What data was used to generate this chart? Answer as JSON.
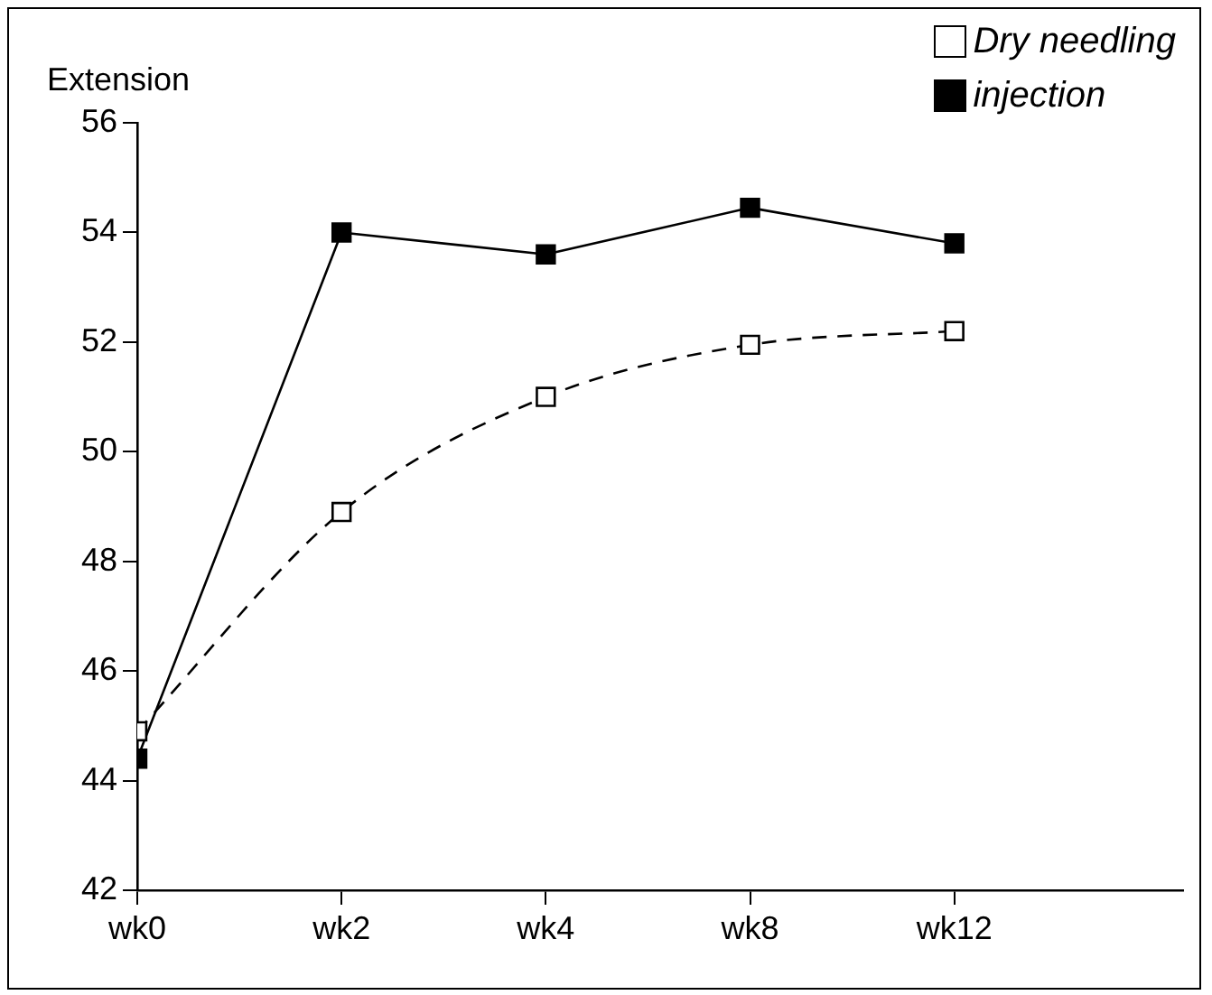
{
  "chart_data": {
    "type": "line",
    "ylabel": "Extension",
    "categories": [
      "wk0",
      "wk2",
      "wk4",
      "wk8",
      "wk12"
    ],
    "ylim": [
      42,
      56
    ],
    "yticks": [
      42,
      44,
      46,
      48,
      50,
      52,
      54,
      56
    ],
    "grid": false,
    "legend": "top right",
    "marker": "square",
    "series": [
      {
        "name": "Dry needling",
        "color": "#000000",
        "line_style": "dashed",
        "values": [
          44.9,
          48.9,
          51.0,
          51.95,
          52.2
        ]
      },
      {
        "name": "injection",
        "color": "#000000",
        "line_style": "solid",
        "values": [
          44.4,
          54.0,
          53.6,
          54.45,
          53.8
        ]
      }
    ]
  }
}
